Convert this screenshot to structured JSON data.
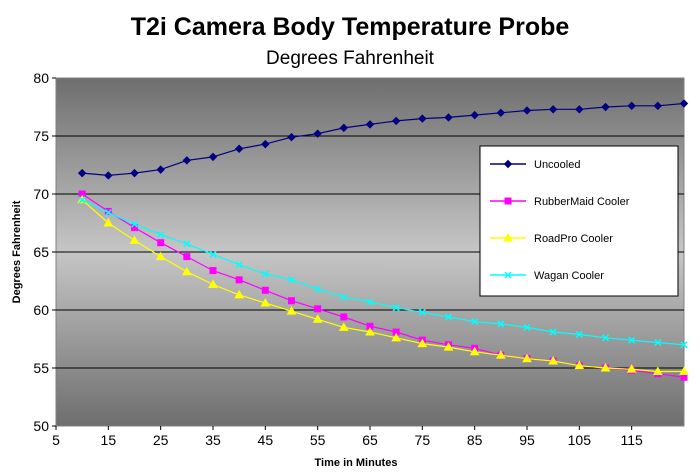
{
  "chart_data": {
    "type": "line",
    "title": "T2i Camera Body Temperature Probe",
    "subtitle": "Degrees Fahrenheit",
    "xlabel": "Time in Minutes",
    "ylabel": "Degrees Fahrenheit",
    "xlim": [
      5,
      125
    ],
    "ylim": [
      50,
      80
    ],
    "x_ticks": [
      5,
      15,
      25,
      35,
      45,
      55,
      65,
      75,
      85,
      95,
      105,
      115
    ],
    "y_ticks": [
      50,
      55,
      60,
      65,
      70,
      75,
      80
    ],
    "grid": "horizontal",
    "legend_position": "right",
    "x": [
      10,
      15,
      20,
      25,
      30,
      35,
      40,
      45,
      50,
      55,
      60,
      65,
      70,
      75,
      80,
      85,
      90,
      95,
      100,
      105,
      110,
      115,
      120,
      125
    ],
    "series": [
      {
        "name": "Uncooled",
        "color": "#000080",
        "marker": "diamond",
        "values": [
          71.8,
          71.6,
          71.8,
          72.1,
          72.9,
          73.2,
          73.9,
          74.3,
          74.9,
          75.2,
          75.7,
          76.0,
          76.3,
          76.5,
          76.6,
          76.8,
          77.0,
          77.2,
          77.3,
          77.3,
          77.5,
          77.6,
          77.6,
          77.8
        ]
      },
      {
        "name": "RubberMaid Cooler",
        "color": "#ff00ff",
        "marker": "square",
        "values": [
          70.0,
          68.5,
          67.1,
          65.8,
          64.6,
          63.4,
          62.6,
          61.7,
          60.8,
          60.1,
          59.4,
          58.6,
          58.1,
          57.4,
          57.0,
          56.7,
          56.1,
          55.8,
          55.6,
          55.2,
          55.0,
          54.8,
          54.5,
          54.2
        ]
      },
      {
        "name": "RoadPro Cooler",
        "color": "#ffff00",
        "marker": "triangle",
        "values": [
          69.5,
          67.5,
          66.0,
          64.6,
          63.3,
          62.2,
          61.3,
          60.6,
          59.9,
          59.2,
          58.5,
          58.1,
          57.6,
          57.1,
          56.8,
          56.4,
          56.1,
          55.8,
          55.6,
          55.2,
          55.0,
          54.9,
          54.7,
          54.7
        ]
      },
      {
        "name": "Wagan Cooler",
        "color": "#00ffff",
        "marker": "x",
        "values": [
          69.5,
          68.4,
          67.4,
          66.5,
          65.7,
          64.8,
          63.9,
          63.1,
          62.6,
          61.8,
          61.1,
          60.7,
          60.2,
          59.8,
          59.4,
          59.0,
          58.8,
          58.5,
          58.1,
          57.9,
          57.6,
          57.4,
          57.2,
          57.0
        ]
      }
    ]
  }
}
